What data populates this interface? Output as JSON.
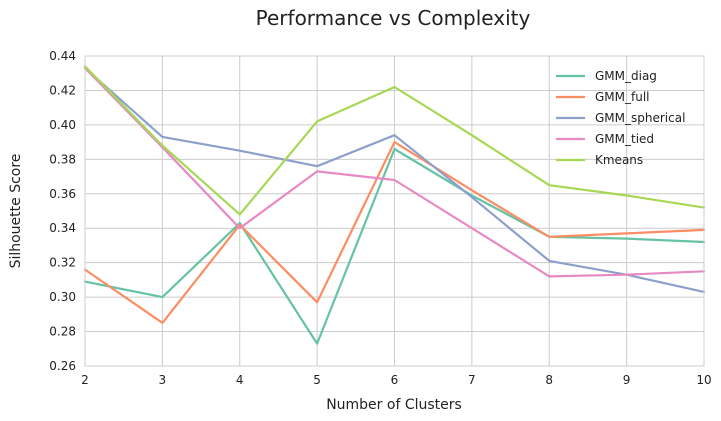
{
  "chart_data": {
    "type": "line",
    "title": "Performance vs Complexity",
    "xlabel": "Number of Clusters",
    "ylabel": "Silhouette Score",
    "x": [
      2,
      3,
      4,
      5,
      6,
      7,
      8,
      9,
      10
    ],
    "xlim": [
      2,
      10
    ],
    "ylim": [
      0.26,
      0.44
    ],
    "yticks": [
      0.26,
      0.28,
      0.3,
      0.32,
      0.34,
      0.36,
      0.38,
      0.4,
      0.42,
      0.44
    ],
    "ytick_labels": [
      "0.26",
      "0.28",
      "0.30",
      "0.32",
      "0.34",
      "0.36",
      "0.38",
      "0.40",
      "0.42",
      "0.44"
    ],
    "xtick_labels": [
      "2",
      "3",
      "4",
      "5",
      "6",
      "7",
      "8",
      "9",
      "10"
    ],
    "grid": true,
    "legend_position": "top-right",
    "series": [
      {
        "name": "GMM_diag",
        "color": "#66c2a5",
        "values": [
          0.309,
          0.3,
          0.343,
          0.273,
          0.386,
          0.359,
          0.335,
          0.334,
          0.332
        ]
      },
      {
        "name": "GMM_full",
        "color": "#fc8d62",
        "values": [
          0.316,
          0.285,
          0.342,
          0.297,
          0.39,
          0.362,
          0.335,
          0.337,
          0.339
        ]
      },
      {
        "name": "GMM_spherical",
        "color": "#8da0cb",
        "values": [
          0.433,
          0.393,
          0.385,
          0.376,
          0.394,
          0.358,
          0.321,
          0.313,
          0.303
        ]
      },
      {
        "name": "GMM_tied",
        "color": "#e78ac3",
        "values": [
          0.433,
          0.387,
          0.34,
          0.373,
          0.368,
          0.34,
          0.312,
          0.313,
          0.315
        ]
      },
      {
        "name": "Kmeans",
        "color": "#a6d854",
        "values": [
          0.434,
          0.388,
          0.348,
          0.402,
          0.422,
          0.394,
          0.365,
          0.359,
          0.352
        ]
      }
    ]
  }
}
